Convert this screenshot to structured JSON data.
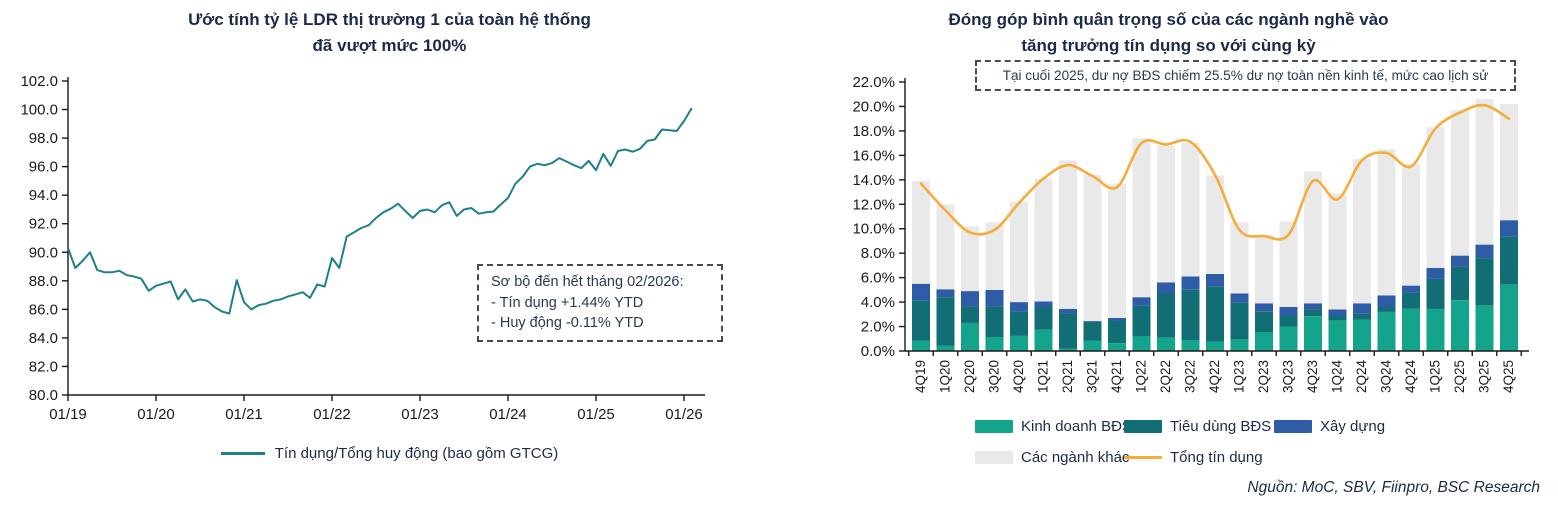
{
  "source": "Nguồn: MoC, SBV, Fiinpro, BSC Research",
  "colors": {
    "title_navy": "#1C2A4A",
    "axis_text": "#1a1a1a",
    "axis_line": "#1a1a1a",
    "note_border": "#4a4a4a"
  },
  "chart_data": [
    {
      "type": "line",
      "title": "Ước tính tỷ lệ LDR thị trường 1 của toàn hệ thống đã vượt mức 100%",
      "title_line1": "Ước tính tỷ lệ LDR thị trường 1 của toàn hệ thống",
      "title_line2": "đã vượt mức 100%",
      "ylim": [
        80,
        102
      ],
      "y_tick_step": 2,
      "x_tick_labels": [
        "01/19",
        "01/20",
        "01/21",
        "01/22",
        "01/23",
        "01/24",
        "01/25",
        "01/26"
      ],
      "x_start": "01/2019",
      "x_end": "02/2026",
      "grid": false,
      "legend_position": "bottom",
      "note_lines": [
        "Sơ bộ đến hết tháng 02/2026:",
        "- Tín dụng +1.44% YTD",
        "- Huy động -0.11% YTD"
      ],
      "series": [
        {
          "name": "Tín dụng/Tổng huy động (bao gồm GTCG)",
          "color": "#1E7F8D",
          "values": [
            90.3,
            88.9,
            89.4,
            90.0,
            88.75,
            88.6,
            88.6,
            88.7,
            88.4,
            88.3,
            88.15,
            87.3,
            87.65,
            87.8,
            87.95,
            86.7,
            87.4,
            86.55,
            86.7,
            86.6,
            86.15,
            85.85,
            85.7,
            88.05,
            86.5,
            86.0,
            86.3,
            86.4,
            86.6,
            86.7,
            86.9,
            87.05,
            87.2,
            86.8,
            87.75,
            87.6,
            89.6,
            88.9,
            91.1,
            91.4,
            91.7,
            91.9,
            92.4,
            92.8,
            93.05,
            93.4,
            92.9,
            92.4,
            92.9,
            93.0,
            92.8,
            93.3,
            93.5,
            92.55,
            93.0,
            93.1,
            92.7,
            92.8,
            92.85,
            93.35,
            93.8,
            94.8,
            95.3,
            96.0,
            96.2,
            96.1,
            96.25,
            96.6,
            96.35,
            96.1,
            95.9,
            96.4,
            95.75,
            96.9,
            96.05,
            97.1,
            97.2,
            97.05,
            97.25,
            97.8,
            97.9,
            98.6,
            98.55,
            98.5,
            99.2,
            100.05
          ]
        }
      ]
    },
    {
      "type": "bar",
      "subtype": "stacked-bar-with-line",
      "title": "Đóng góp bình quân trọng số của các ngành nghề vào tăng trưởng tín dụng so với cùng kỳ",
      "title_line1": "Đóng góp bình quân trọng số của các ngành nghề vào",
      "title_line2": "tăng trưởng tín dụng so với cùng kỳ",
      "note": "Tại cuối 2025, dư nợ BĐS chiếm 25.5% dư nợ toàn nền kinh tế, mức cao lịch sử",
      "ylim": [
        0,
        22
      ],
      "y_tick_step": 2,
      "grid": false,
      "legend_position": "bottom",
      "categories": [
        "4Q19",
        "1Q20",
        "2Q20",
        "3Q20",
        "4Q20",
        "1Q21",
        "2Q21",
        "3Q21",
        "4Q21",
        "1Q22",
        "2Q22",
        "3Q22",
        "4Q22",
        "1Q23",
        "2Q23",
        "3Q23",
        "4Q23",
        "1Q24",
        "2Q24",
        "3Q24",
        "4Q24",
        "1Q25",
        "2Q25",
        "3Q25",
        "4Q25"
      ],
      "series": [
        {
          "name": "Kinh doanh BĐS",
          "color": "#14A38B",
          "values": [
            0.85,
            0.45,
            2.3,
            1.15,
            1.25,
            1.75,
            0.2,
            0.85,
            0.65,
            1.2,
            1.1,
            0.9,
            0.75,
            0.95,
            1.55,
            2.0,
            2.85,
            2.5,
            2.55,
            3.2,
            3.45,
            3.45,
            4.15,
            3.75,
            5.45
          ]
        },
        {
          "name": "Tiêu dùng BĐS",
          "color": "#106E74",
          "values": [
            3.3,
            3.95,
            1.35,
            2.5,
            2.0,
            1.85,
            2.9,
            1.55,
            1.8,
            2.5,
            3.6,
            4.1,
            4.55,
            3.0,
            1.7,
            0.9,
            0.55,
            0.4,
            0.5,
            0.4,
            1.3,
            2.45,
            2.75,
            3.85,
            3.9
          ]
        },
        {
          "name": "Xây dựng",
          "color": "#2E5CA6",
          "values": [
            1.35,
            0.65,
            1.25,
            1.35,
            0.75,
            0.45,
            0.35,
            0.05,
            0.25,
            0.7,
            0.9,
            1.1,
            1.0,
            0.75,
            0.65,
            0.7,
            0.5,
            0.5,
            0.85,
            0.95,
            0.6,
            0.9,
            0.9,
            1.1,
            1.35
          ]
        },
        {
          "name": "Các ngành khác",
          "color": "#E9E9E9",
          "values": [
            8.4,
            6.95,
            5.3,
            5.5,
            8.2,
            10.05,
            12.15,
            11.95,
            11.0,
            13.0,
            11.2,
            10.9,
            8.05,
            5.85,
            5.6,
            7.0,
            10.8,
            9.5,
            11.8,
            11.95,
            9.95,
            11.5,
            11.9,
            11.9,
            9.5
          ]
        }
      ],
      "line_series": {
        "name": "Tổng tín dụng",
        "color": "#F6AC3A",
        "values": [
          13.7,
          11.5,
          9.7,
          9.9,
          12.1,
          14.1,
          15.2,
          14.3,
          13.4,
          17.0,
          16.9,
          17.1,
          14.4,
          9.9,
          9.4,
          9.5,
          13.9,
          12.4,
          15.6,
          16.2,
          15.1,
          18.2,
          19.5,
          20.1,
          19.0
        ]
      }
    }
  ]
}
